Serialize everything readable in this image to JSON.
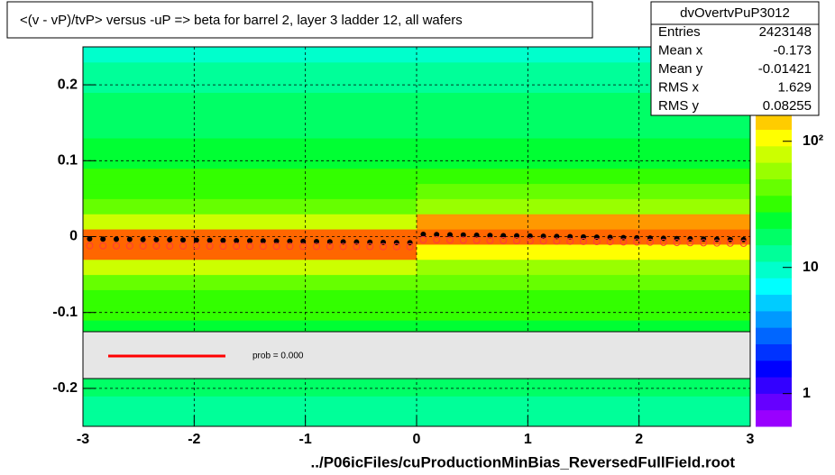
{
  "chart_data": {
    "type": "heatmap-profile",
    "title": "<(v - vP)/tvP> versus  -uP => beta for barrel 2, layer 3 ladder 12, all wafers",
    "x_label": "../P06icFiles/cuProductionMinBias_ReversedFullField.root",
    "xlim": [
      -3,
      3
    ],
    "ylim": [
      -0.25,
      0.25
    ],
    "xticks": [
      -3,
      -2,
      -1,
      0,
      1,
      2,
      3
    ],
    "yticks": [
      -0.2,
      -0.1,
      0,
      0.1,
      0.2
    ],
    "grid": true,
    "zlim": [
      0.55,
      560
    ],
    "zlog": true,
    "zticks": [
      1,
      10,
      {
        "value": 100,
        "label": "10²"
      }
    ],
    "palette": [
      "#9900ff",
      "#6600ff",
      "#3300ff",
      "#0000ff",
      "#0033ff",
      "#0066ff",
      "#0099ff",
      "#00ccff",
      "#00ffff",
      "#00ffcc",
      "#00ff99",
      "#00ff66",
      "#00ff33",
      "#33ff00",
      "#66ff00",
      "#99ff00",
      "#ccff00",
      "#ffff00",
      "#ffcc00",
      "#ff9900",
      "#ff6600",
      "#ff3300",
      "#ff0000"
    ],
    "heatmap": {
      "x_edges": [
        -3,
        0,
        3
      ],
      "y_edges": [
        -0.25,
        -0.23,
        -0.21,
        -0.19,
        -0.17,
        -0.15,
        -0.13,
        -0.11,
        -0.09,
        -0.07,
        -0.05,
        -0.03,
        -0.01,
        0.01,
        0.03,
        0.05,
        0.07,
        0.09,
        0.11,
        0.13,
        0.15,
        0.17,
        0.19,
        0.21,
        0.23,
        0.25
      ],
      "counts": [
        [
          12,
          12
        ],
        [
          14,
          14
        ],
        [
          16,
          16
        ],
        [
          18,
          18
        ],
        [
          20,
          20
        ],
        [
          22,
          22
        ],
        [
          25,
          25
        ],
        [
          30,
          30
        ],
        [
          35,
          35
        ],
        [
          45,
          45
        ],
        [
          70,
          60
        ],
        [
          250,
          120
        ],
        [
          300,
          300
        ],
        [
          80,
          200
        ],
        [
          45,
          60
        ],
        [
          35,
          40
        ],
        [
          30,
          32
        ],
        [
          25,
          26
        ],
        [
          22,
          22
        ],
        [
          20,
          20
        ],
        [
          18,
          18
        ],
        [
          16,
          16
        ],
        [
          14,
          14
        ],
        [
          12,
          12
        ],
        [
          10,
          10
        ]
      ]
    },
    "x": [
      -2.94,
      -2.82,
      -2.7,
      -2.58,
      -2.46,
      -2.34,
      -2.22,
      -2.1,
      -1.98,
      -1.86,
      -1.74,
      -1.62,
      -1.5,
      -1.38,
      -1.26,
      -1.14,
      -1.02,
      -0.9,
      -0.78,
      -0.66,
      -0.54,
      -0.42,
      -0.3,
      -0.18,
      -0.06,
      0.06,
      0.18,
      0.3,
      0.42,
      0.54,
      0.66,
      0.78,
      0.9,
      1.02,
      1.14,
      1.26,
      1.38,
      1.5,
      1.62,
      1.74,
      1.86,
      1.98,
      2.1,
      2.22,
      2.34,
      2.46,
      2.58,
      2.7,
      2.82,
      2.94
    ],
    "series": [
      {
        "color": "#000000",
        "marker": "filled",
        "values": [
          -0.003,
          -0.0032,
          -0.0034,
          -0.0036,
          -0.0038,
          -0.004,
          -0.0042,
          -0.0045,
          -0.0047,
          -0.0049,
          -0.0051,
          -0.0053,
          -0.0055,
          -0.0057,
          -0.0059,
          -0.0061,
          -0.0063,
          -0.0065,
          -0.0068,
          -0.007,
          -0.0072,
          -0.0074,
          -0.0076,
          -0.0078,
          -0.008,
          0.003,
          0.0027,
          0.0024,
          0.0021,
          0.0018,
          0.0015,
          0.0012,
          0.001,
          0.0007,
          0.0004,
          0.0001,
          -0.0002,
          -0.0005,
          -0.0008,
          -0.0011,
          -0.0014,
          -0.0017,
          -0.002,
          -0.0023,
          -0.0026,
          -0.0029,
          -0.0032,
          -0.0035,
          -0.0038,
          -0.004
        ]
      },
      {
        "color": "#ff3b3b",
        "marker": "open",
        "values": [
          -0.012,
          -0.0121,
          -0.0122,
          -0.0122,
          -0.0123,
          -0.0123,
          -0.0124,
          -0.0124,
          -0.0125,
          -0.0125,
          -0.0126,
          -0.0126,
          -0.0127,
          -0.0127,
          -0.0128,
          -0.0128,
          -0.0129,
          -0.0129,
          -0.013,
          -0.013,
          -0.0131,
          -0.0131,
          -0.0132,
          -0.0132,
          -0.0133,
          -0.004,
          -0.0042,
          -0.0044,
          -0.0046,
          -0.0048,
          -0.005,
          -0.0052,
          -0.0054,
          -0.0056,
          -0.0058,
          -0.006,
          -0.0062,
          -0.0064,
          -0.0066,
          -0.0068,
          -0.007,
          -0.0072,
          -0.0074,
          -0.0076,
          -0.0078,
          -0.008,
          -0.0082,
          -0.0084,
          -0.0086,
          -0.0088
        ]
      }
    ],
    "legend": {
      "label": "prob = 0.000",
      "color": "#ff0000"
    },
    "stats": {
      "title": "dvOvertvPuP3012",
      "rows": [
        [
          "Entries",
          2423148
        ],
        [
          "Mean x",
          -0.173
        ],
        [
          "Mean y",
          -0.01421
        ],
        [
          "RMS x",
          1.629
        ],
        [
          "RMS y",
          0.08255
        ]
      ]
    }
  }
}
